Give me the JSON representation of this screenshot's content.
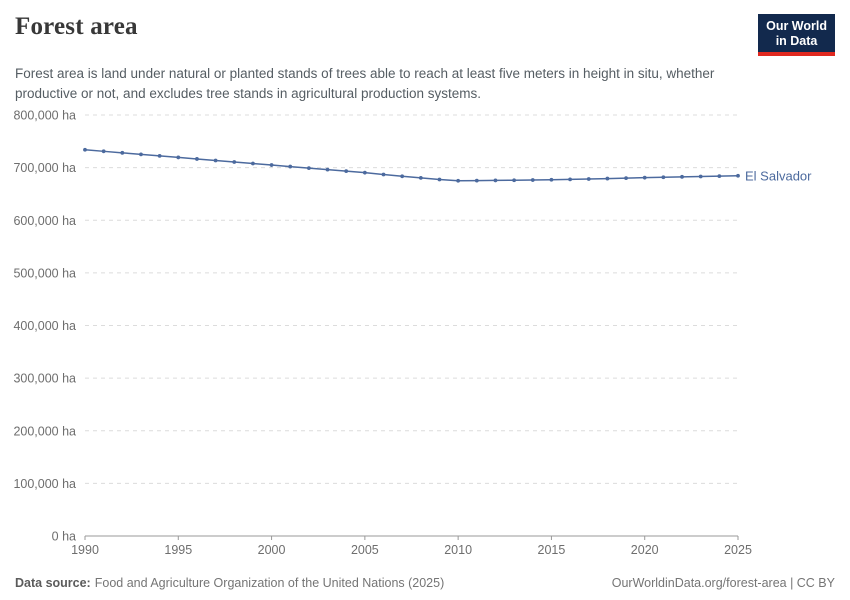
{
  "header": {
    "title": "Forest area",
    "subtitle": "Forest area is land under natural or planted stands of trees able to reach at least five meters in height in situ, whether productive or not, and excludes tree stands in agricultural production systems.",
    "logo": {
      "line1": "Our World",
      "line2": "in Data"
    }
  },
  "footer": {
    "source_label": "Data source:",
    "source_text": "Food and Agriculture Organization of the United Nations (2025)",
    "link_text": "OurWorldinData.org/forest-area | CC BY"
  },
  "colors": {
    "line": "#4c6a9e",
    "grid": "#dcdcdc",
    "axis": "#999999",
    "logo_navy": "#12294d",
    "logo_red": "#e0281f"
  },
  "chart_data": {
    "type": "line",
    "title": "Forest area",
    "unit": "ha",
    "xlim": [
      1990,
      2025
    ],
    "ylim": [
      0,
      800000
    ],
    "grid": "horizontal-dashed",
    "legend_position": "end-of-line-label",
    "xticks": [
      1990,
      1995,
      2000,
      2005,
      2010,
      2015,
      2020,
      2025
    ],
    "yticks": [
      {
        "value": 0,
        "label": "0 ha"
      },
      {
        "value": 100000,
        "label": "100,000 ha"
      },
      {
        "value": 200000,
        "label": "200,000 ha"
      },
      {
        "value": 300000,
        "label": "300,000 ha"
      },
      {
        "value": 400000,
        "label": "400,000 ha"
      },
      {
        "value": 500000,
        "label": "500,000 ha"
      },
      {
        "value": 600000,
        "label": "600,000 ha"
      },
      {
        "value": 700000,
        "label": "700,000 ha"
      },
      {
        "value": 800000,
        "label": "800,000 ha"
      }
    ],
    "x": [
      1990,
      1991,
      1992,
      1993,
      1994,
      1995,
      1996,
      1997,
      1998,
      1999,
      2000,
      2001,
      2002,
      2003,
      2004,
      2005,
      2006,
      2007,
      2008,
      2009,
      2010,
      2011,
      2012,
      2013,
      2014,
      2015,
      2016,
      2017,
      2018,
      2019,
      2020,
      2021,
      2022,
      2023,
      2024,
      2025
    ],
    "series": [
      {
        "name": "El Salvador",
        "color": "#4c6a9e",
        "values": [
          734000,
          731000,
          728100,
          725200,
          722300,
          719400,
          716500,
          713600,
          710700,
          707800,
          704900,
          702000,
          699100,
          696200,
          693300,
          690400,
          687000,
          683500,
          680500,
          677500,
          675000,
          675300,
          675700,
          676000,
          676400,
          677000,
          677700,
          678400,
          679200,
          680000,
          680900,
          681700,
          682500,
          683200,
          683900,
          684500
        ]
      }
    ]
  }
}
